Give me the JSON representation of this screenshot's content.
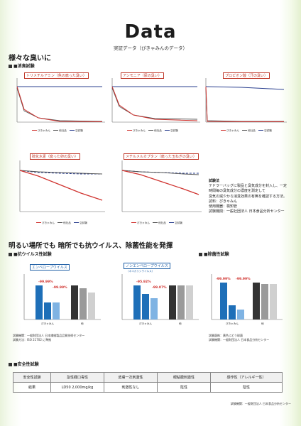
{
  "header": {
    "title": "Data",
    "subtitle": "実証データ（ぴきゃみんのデータ）"
  },
  "sections": {
    "various_odors": "様々な臭いに",
    "deodor_test": "■消臭試験",
    "antivirus_heading": "明るい場所でも 暗所でも抗ウイルス、除菌性能を発揮",
    "antivirus_test": "■抗ウイルス性試験",
    "antibac_test": "■除菌性試験",
    "safety_test": "■安全性試験"
  },
  "odor_charts": [
    {
      "label": "トリメチルアミン（魚の腐った臭い）"
    },
    {
      "label": "アンモニア（尿の臭い）"
    },
    {
      "label": "プロピオン酸（汗の臭い）"
    },
    {
      "label": "硫化水素（腐った卵の臭い）"
    },
    {
      "label": "メチルメルカプタン（腐った玉ねぎの臭い）"
    }
  ],
  "legend": {
    "a": "ぴきゃみん",
    "b": "他社品",
    "c": "空試験"
  },
  "info": {
    "heading": "試験法",
    "lines": [
      "テドラーバッグに製品と臭気成分を封入し、一定",
      "時間毎の臭気成分の濃度を測定して",
      "臭気の減少から消臭効果の有無を確認する方法。",
      "試料：ぴきゃみん",
      "使用機器：検知管",
      "試験機関：一般社団法人 日本食品分析センター"
    ]
  },
  "antivirus": {
    "panels": [
      {
        "title": "エンベロープウイルス",
        "pct1": "-99.99%",
        "pct2": "-99.99%"
      },
      {
        "title": "ノンエンベロープウイルス",
        "sub": "（ネコカリシウイルス）",
        "pct1": "-95.92%",
        "pct2": "-99.07%"
      }
    ],
    "group_bright": "ぴきゃみん",
    "group_dark": "他",
    "note_lines": [
      "試験機関：一般財団法人 日本繊維製品品質技術センター",
      "試験方法：ISO 21702 に準拠"
    ]
  },
  "antibac": {
    "pct1": "-99.99%",
    "pct2": "-99.99%",
    "group_bright": "ぴきゃみん",
    "group_dark": "他",
    "note_lines": [
      "試験菌株：黄色ぶどう球菌",
      "試験機関：一般財団法人 日本食品分析センター"
    ]
  },
  "safety": {
    "headers": [
      "安全性試験",
      "急性経口毒性",
      "皮膚一次刺激性",
      "眼粘膜刺激性",
      "感作性（アレルギー性）"
    ],
    "row": [
      "結果",
      "LD50 2,000mg/kg",
      "刺激性なし",
      "陰性",
      "陰性"
    ],
    "footer": "試験機関：一般財団法人 日本食品分析センター"
  },
  "colors": {
    "accent_red": "#d0332f",
    "accent_blue": "#1f5fa6",
    "navy": "#2a3f8f",
    "bar_blue": "#1e6fb8",
    "bar_light": "#7fb3e3",
    "bar_dark": "#333333",
    "bar_gray": "#9a9a9a",
    "bar_light_gray": "#d0d0d0"
  }
}
